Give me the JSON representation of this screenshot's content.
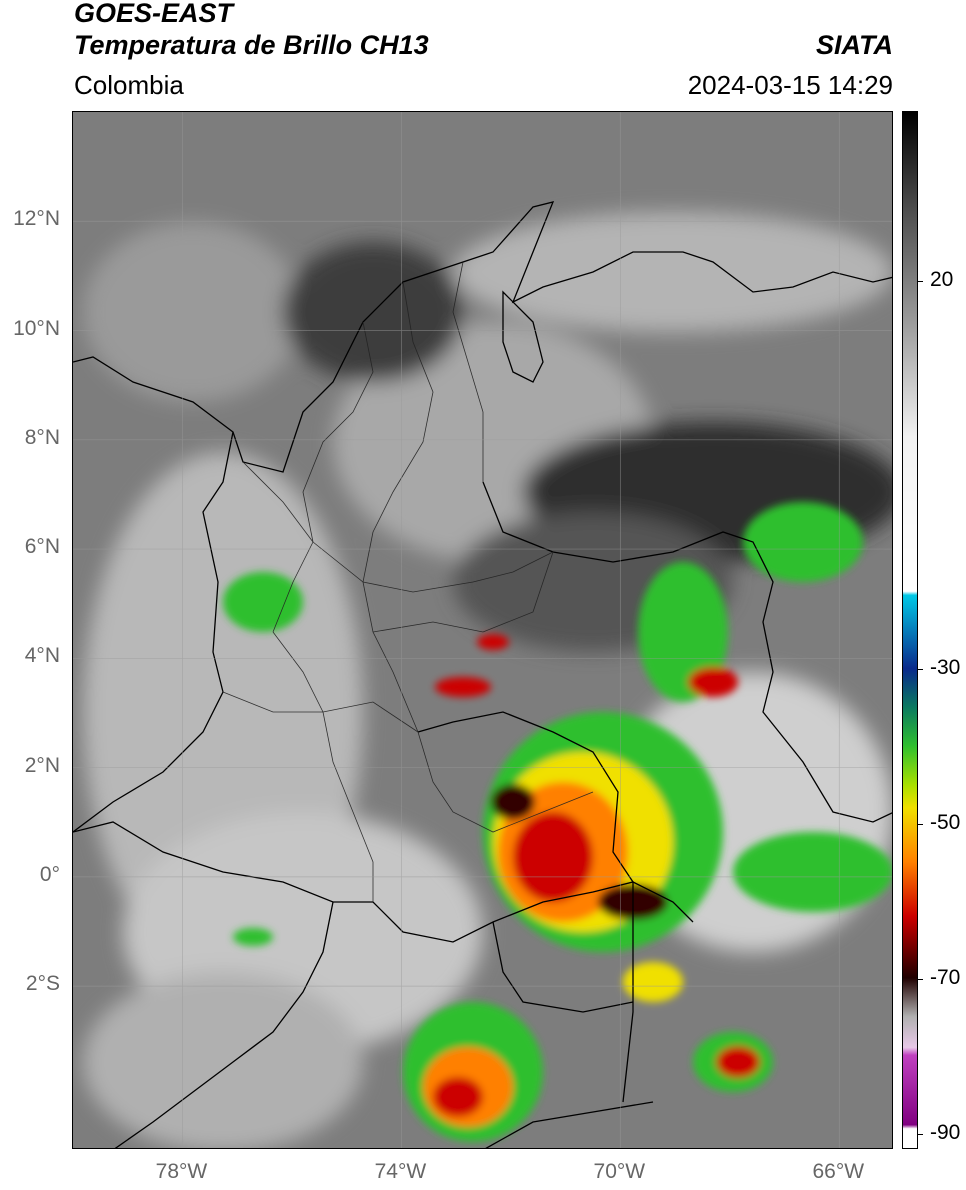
{
  "header": {
    "satellite": "GOES-EAST",
    "product": "Temperatura de Brillo CH13",
    "organization": "SIATA",
    "region": "Colombia",
    "timestamp": "2024-03-15 14:29"
  },
  "map": {
    "lat_labels": [
      "12°N",
      "10°N",
      "8°N",
      "6°N",
      "4°N",
      "2°N",
      "0°",
      "2°S"
    ],
    "lon_labels": [
      "78°W",
      "74°W",
      "70°W",
      "66°W"
    ],
    "lat_values": [
      12,
      10,
      8,
      6,
      4,
      2,
      0,
      -2
    ],
    "lon_values": [
      -78,
      -74,
      -70,
      -66
    ],
    "extent": {
      "lon_min": -80,
      "lon_max": -65,
      "lat_min": -5,
      "lat_max": 14
    },
    "gridlines": true
  },
  "colorbar": {
    "tick_labels": [
      "20",
      "-30",
      "-50",
      "-70",
      "-90"
    ],
    "tick_values": [
      20,
      -30,
      -50,
      -70,
      -90
    ],
    "range": [
      -92,
      42
    ],
    "unit": "",
    "colors": {
      "warm": "#ffffff",
      "cold_gray_start": "#f2f2f2",
      "cyan": "#00c8e6",
      "blue": "#0a2a8c",
      "green": "#2fbf2f",
      "yellow": "#f0e000",
      "orange": "#ff8000",
      "red": "#cc0000",
      "dark": "#200000",
      "magenta": "#c040c0"
    }
  }
}
